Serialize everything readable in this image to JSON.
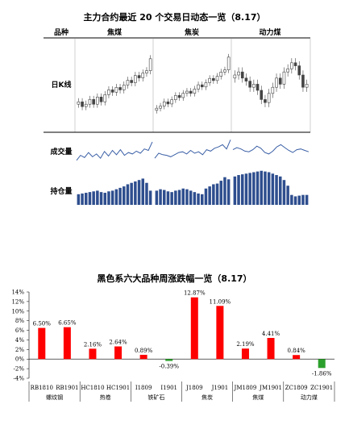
{
  "panel1": {
    "title": "主力合约最近 20 个交易日动态一览（8.17）",
    "header": {
      "col0": "品种",
      "cols": [
        "焦煤",
        "焦炭",
        "动力煤"
      ]
    },
    "row_labels": {
      "kline": "日K线",
      "volume": "成交量",
      "open_interest": "持仓量"
    },
    "colors": {
      "volume_line": "#3a5fa6",
      "oi_bar": "#2e4e8e",
      "candle": "#444444"
    }
  },
  "panel2": {
    "title": "黑色系六大品种周涨跌幅一览（8.17）",
    "colors": {
      "positive": "#ff0000",
      "negative": "#2ca02c"
    }
  },
  "chart_data": [
    {
      "type": "candlestick",
      "panels": [
        {
          "name": "焦煤",
          "close": [
            48,
            46,
            47,
            49,
            47,
            50,
            48,
            51,
            53,
            52,
            54,
            53,
            55,
            57,
            56,
            59,
            58,
            60,
            61,
            66
          ]
        },
        {
          "name": "焦炭",
          "close": [
            44,
            45,
            47,
            46,
            48,
            50,
            49,
            51,
            52,
            51,
            53,
            55,
            54,
            56,
            58,
            57,
            59,
            61,
            62,
            68
          ]
        },
        {
          "name": "动力煤",
          "close": [
            64,
            65,
            63,
            62,
            60,
            61,
            59,
            56,
            55,
            58,
            60,
            63,
            61,
            65,
            66,
            68,
            67,
            64,
            60,
            61
          ]
        }
      ]
    },
    {
      "type": "line",
      "title": "成交量",
      "series": [
        {
          "name": "焦煤",
          "values": [
            30,
            44,
            38,
            52,
            40,
            48,
            36,
            55,
            42,
            58,
            46,
            60,
            44,
            52,
            48,
            56,
            50,
            62,
            58,
            82
          ]
        },
        {
          "name": "焦炭",
          "values": [
            36,
            50,
            46,
            44,
            40,
            46,
            52,
            54,
            48,
            58,
            50,
            54,
            46,
            60,
            56,
            64,
            68,
            74,
            62,
            88
          ]
        },
        {
          "name": "动力煤",
          "values": [
            60,
            66,
            62,
            56,
            54,
            60,
            70,
            64,
            52,
            48,
            56,
            68,
            74,
            66,
            58,
            52,
            60,
            62,
            58,
            54
          ]
        }
      ]
    },
    {
      "type": "bar",
      "title": "持仓量",
      "series": [
        {
          "name": "焦煤",
          "values": [
            30,
            32,
            34,
            36,
            38,
            40,
            36,
            34,
            38,
            40,
            44,
            48,
            52,
            58,
            62,
            66,
            70,
            74,
            62,
            40
          ]
        },
        {
          "name": "焦炭",
          "values": [
            40,
            44,
            42,
            38,
            36,
            40,
            42,
            46,
            44,
            40,
            36,
            32,
            30,
            46,
            52,
            58,
            60,
            68,
            78,
            72
          ]
        },
        {
          "name": "动力煤",
          "values": [
            80,
            84,
            86,
            88,
            90,
            92,
            94,
            96,
            94,
            92,
            88,
            84,
            80,
            70,
            54,
            28,
            24,
            26,
            28,
            28
          ]
        }
      ]
    },
    {
      "type": "bar",
      "title": "黑色系六大品种周涨跌幅一览（8.17）",
      "y_ticks": [
        "-4%",
        "-2%",
        "0%",
        "2%",
        "4%",
        "6%",
        "8%",
        "10%",
        "12%",
        "14%"
      ],
      "ylim": [
        -4,
        14
      ],
      "categories": [
        "RB1810",
        "RB1901",
        "HC1810",
        "HC1901",
        "I1809",
        "I1901",
        "J1809",
        "J1901",
        "JM1809",
        "JM1901",
        "ZC1809",
        "ZC1901"
      ],
      "values": [
        6.5,
        6.65,
        2.16,
        2.64,
        0.89,
        -0.39,
        12.87,
        11.09,
        2.19,
        4.41,
        0.84,
        -1.86
      ],
      "labels": [
        "6.50%",
        "6.65%",
        "2.16%",
        "2.64%",
        "0.89%",
        "-0.39%",
        "12.87%",
        "11.09%",
        "2.19%",
        "4.41%",
        "0.84%",
        "-1.86%"
      ],
      "groups": [
        "螺纹钢",
        "热卷",
        "铁矿石",
        "焦炭",
        "焦煤",
        "动力煤"
      ]
    }
  ]
}
